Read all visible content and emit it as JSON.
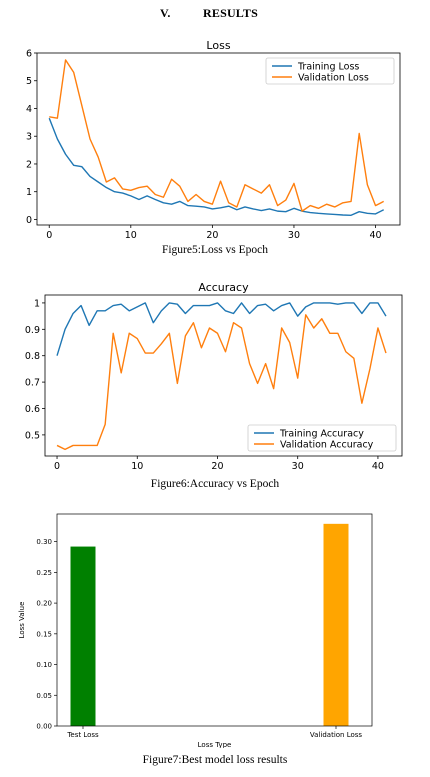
{
  "section": {
    "number": "V.",
    "title": "RESULTS"
  },
  "captions": {
    "fig5": "Figure5:Loss vs Epoch",
    "fig6": "Figure6:Accuracy vs Epoch",
    "fig7": "Figure7:Best model loss  results"
  },
  "colors": {
    "blue": "#1f77b4",
    "orange": "#ff7f0e",
    "green": "#008000",
    "amber": "#ffa500"
  },
  "chart_data": [
    {
      "type": "line",
      "title": "Loss",
      "xlabel": "",
      "ylabel": "",
      "xlim": [
        -1.5,
        43
      ],
      "ylim": [
        -0.2,
        6
      ],
      "xticks": [
        0,
        10,
        20,
        30,
        40
      ],
      "yticks": [
        0,
        1,
        2,
        3,
        4,
        5,
        6
      ],
      "legend": "top-right",
      "x": [
        0,
        1,
        2,
        3,
        4,
        5,
        6,
        7,
        8,
        9,
        10,
        11,
        12,
        13,
        14,
        15,
        16,
        17,
        18,
        19,
        20,
        21,
        22,
        23,
        24,
        25,
        26,
        27,
        28,
        29,
        30,
        31,
        32,
        33,
        34,
        35,
        36,
        37,
        38,
        39,
        40,
        41
      ],
      "series": [
        {
          "name": "Training Loss",
          "color": "#1f77b4",
          "values": [
            3.65,
            2.9,
            2.35,
            1.95,
            1.9,
            1.55,
            1.35,
            1.15,
            1.0,
            0.95,
            0.85,
            0.72,
            0.85,
            0.72,
            0.6,
            0.55,
            0.65,
            0.5,
            0.48,
            0.45,
            0.38,
            0.42,
            0.48,
            0.35,
            0.45,
            0.38,
            0.32,
            0.38,
            0.3,
            0.28,
            0.4,
            0.3,
            0.25,
            0.22,
            0.2,
            0.18,
            0.16,
            0.15,
            0.28,
            0.22,
            0.2,
            0.35
          ]
        },
        {
          "name": "Validation Loss",
          "color": "#ff7f0e",
          "values": [
            3.7,
            3.65,
            5.75,
            5.3,
            4.1,
            2.9,
            2.25,
            1.35,
            1.5,
            1.1,
            1.05,
            1.15,
            1.2,
            0.9,
            0.8,
            1.45,
            1.2,
            0.65,
            0.9,
            0.65,
            0.55,
            1.38,
            0.6,
            0.45,
            1.25,
            1.1,
            0.95,
            1.25,
            0.5,
            0.7,
            1.3,
            0.3,
            0.5,
            0.4,
            0.55,
            0.45,
            0.6,
            0.65,
            3.1,
            1.25,
            0.5,
            0.65
          ]
        }
      ]
    },
    {
      "type": "line",
      "title": "Accuracy",
      "xlabel": "",
      "ylabel": "",
      "xlim": [
        -1.5,
        43
      ],
      "ylim": [
        0.42,
        1.03
      ],
      "xticks": [
        0,
        10,
        20,
        30,
        40
      ],
      "yticks": [
        0.5,
        0.6,
        0.7,
        0.8,
        0.9,
        1.0
      ],
      "legend": "bottom-right",
      "x": [
        0,
        1,
        2,
        3,
        4,
        5,
        6,
        7,
        8,
        9,
        10,
        11,
        12,
        13,
        14,
        15,
        16,
        17,
        18,
        19,
        20,
        21,
        22,
        23,
        24,
        25,
        26,
        27,
        28,
        29,
        30,
        31,
        32,
        33,
        34,
        35,
        36,
        37,
        38,
        39,
        40,
        41
      ],
      "series": [
        {
          "name": "Training Accuracy",
          "color": "#1f77b4",
          "values": [
            0.8,
            0.9,
            0.96,
            0.99,
            0.915,
            0.97,
            0.97,
            0.99,
            0.995,
            0.97,
            0.985,
            1.0,
            0.925,
            0.97,
            1.0,
            0.995,
            0.96,
            0.99,
            0.99,
            0.99,
            1.0,
            0.97,
            0.96,
            1.0,
            0.96,
            0.99,
            0.995,
            0.97,
            0.99,
            1.0,
            0.95,
            0.985,
            1.0,
            1.0,
            1.0,
            0.995,
            1.0,
            1.0,
            0.96,
            1.0,
            1.0,
            0.95
          ]
        },
        {
          "name": "Validation Accuracy",
          "color": "#ff7f0e",
          "values": [
            0.46,
            0.445,
            0.46,
            0.46,
            0.46,
            0.46,
            0.54,
            0.885,
            0.735,
            0.885,
            0.865,
            0.81,
            0.81,
            0.845,
            0.885,
            0.695,
            0.875,
            0.925,
            0.83,
            0.905,
            0.885,
            0.815,
            0.925,
            0.905,
            0.77,
            0.695,
            0.77,
            0.675,
            0.905,
            0.85,
            0.715,
            0.955,
            0.905,
            0.94,
            0.885,
            0.885,
            0.815,
            0.79,
            0.62,
            0.75,
            0.905,
            0.81
          ]
        }
      ]
    },
    {
      "type": "bar",
      "title": "",
      "xlabel": "Loss Type",
      "ylabel": "Loss Value",
      "categories": [
        "Test Loss",
        "Validation Loss"
      ],
      "values": [
        0.292,
        0.329
      ],
      "colors": [
        "#008000",
        "#ffa500"
      ],
      "ylim": [
        0,
        0.345
      ],
      "yticks": [
        "0.00",
        "0.05",
        "0.10",
        "0.15",
        "0.20",
        "0.25",
        "0.30"
      ]
    }
  ]
}
